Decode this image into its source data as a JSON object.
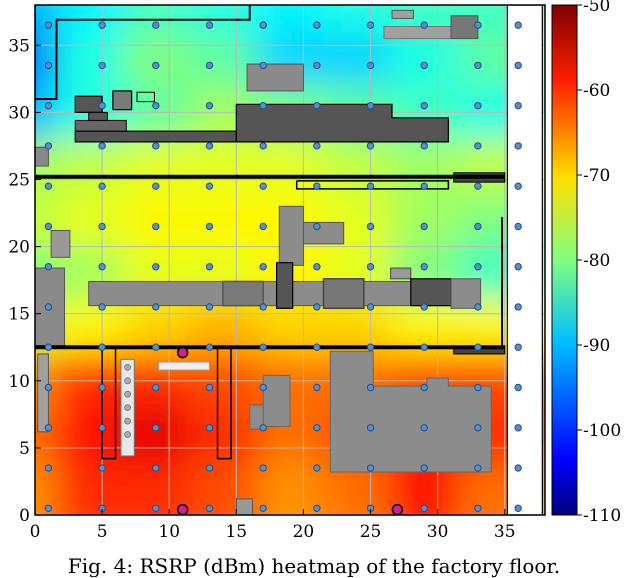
{
  "caption": "Fig. 4: RSRP (dBm) heatmap of the factory floor.",
  "chart_data": {
    "type": "heatmap",
    "title": "",
    "xlabel": "",
    "ylabel": "",
    "xlim": [
      0,
      38
    ],
    "ylim": [
      0,
      38
    ],
    "xticks": [
      0,
      5,
      10,
      15,
      20,
      25,
      30,
      35
    ],
    "yticks": [
      0,
      5,
      10,
      15,
      20,
      25,
      30,
      35
    ],
    "grid": true,
    "colorbar": {
      "label": "",
      "range": [
        -110,
        -50
      ],
      "ticks": [
        -50,
        -60,
        -70,
        -80,
        -90,
        -100,
        -110
      ],
      "colormap": "jet"
    },
    "rsrp_grid_dbm": {
      "x": [
        0,
        5,
        10,
        15,
        20,
        25,
        30,
        35
      ],
      "y": [
        37,
        33,
        29,
        25,
        21,
        17,
        13,
        9,
        5,
        1
      ],
      "values": [
        [
          -92,
          -88,
          -84,
          -86,
          -88,
          -86,
          -84,
          -84
        ],
        [
          -96,
          -86,
          -80,
          -82,
          -90,
          -90,
          -86,
          -82
        ],
        [
          -92,
          -86,
          -82,
          -78,
          -80,
          -82,
          -84,
          -86
        ],
        [
          -78,
          -76,
          -74,
          -74,
          -74,
          -76,
          -78,
          -76
        ],
        [
          -76,
          -74,
          -72,
          -72,
          -72,
          -74,
          -78,
          -80
        ],
        [
          -80,
          -78,
          -74,
          -74,
          -72,
          -74,
          -80,
          -84
        ],
        [
          -76,
          -72,
          -70,
          -68,
          -70,
          -70,
          -72,
          -72
        ],
        [
          -66,
          -60,
          -60,
          -62,
          -64,
          -64,
          -62,
          -62
        ],
        [
          -64,
          -58,
          -56,
          -60,
          -64,
          -62,
          -58,
          -60
        ],
        [
          -66,
          -60,
          -60,
          -62,
          -66,
          -64,
          -58,
          -64
        ]
      ]
    },
    "measurement_points": {
      "x": [
        1,
        5,
        9,
        13,
        17,
        21,
        25,
        29,
        33,
        36
      ],
      "y": [
        0.5,
        3.5,
        6.5,
        9.5,
        12.5,
        15.5,
        18.5,
        21.5,
        24.5,
        27.5,
        30.5,
        33.5,
        36.5
      ]
    },
    "base_stations": [
      {
        "x": 11,
        "y": 12.1
      },
      {
        "x": 11,
        "y": 0.4
      },
      {
        "x": 27,
        "y": 0.4
      }
    ]
  }
}
